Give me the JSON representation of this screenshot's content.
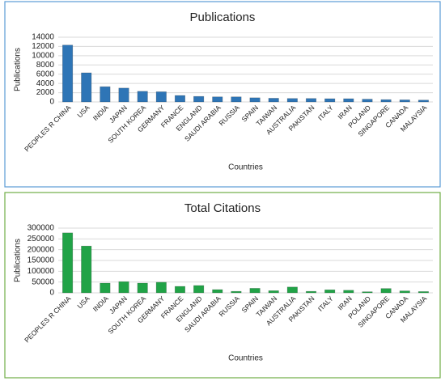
{
  "chart_data": [
    {
      "type": "bar",
      "title": "Publications",
      "x_label": "Countries",
      "y_label": "Publications",
      "categories": [
        "PEOPLES R CHINA",
        "USA",
        "INDIA",
        "JAPAN",
        "SOUTH KOREA",
        "GERMANY",
        "FRANCE",
        "ENGLAND",
        "SAUDI ARABIA",
        "RUSSIA",
        "SPAIN",
        "TAIWAN",
        "AUSTRALIA",
        "PAKISTAN",
        "ITALY",
        "IRAN",
        "POLAND",
        "SINGAPORE",
        "CANADA",
        "MALAYSIA"
      ],
      "values": [
        12300,
        6300,
        3300,
        3000,
        2300,
        2200,
        1400,
        1200,
        1100,
        1100,
        900,
        800,
        750,
        750,
        700,
        700,
        600,
        500,
        450,
        400
      ],
      "color": "#2e75b6",
      "ylim": [
        0,
        14000
      ],
      "yticks": [
        0,
        2000,
        4000,
        6000,
        8000,
        10000,
        12000,
        14000
      ],
      "grid": true
    },
    {
      "type": "bar",
      "title": "Total Citations",
      "x_label": "Countries",
      "y_label": "Publications",
      "categories": [
        "PEOPLES R CHINA",
        "USA",
        "INDIA",
        "JAPAN",
        "SOUTH KOREA",
        "GERMANY",
        "FRANCE",
        "ENGLAND",
        "SAUDI ARABIA",
        "RUSSIA",
        "SPAIN",
        "TAIWAN",
        "AUSTRALIA",
        "PAKISTAN",
        "ITALY",
        "IRAN",
        "POLAND",
        "SINGAPORE",
        "CANADA",
        "MALAYSIA"
      ],
      "values": [
        278000,
        217000,
        45000,
        52000,
        45000,
        49000,
        30000,
        34000,
        15000,
        7000,
        21000,
        10000,
        27000,
        7000,
        14000,
        12000,
        5000,
        20000,
        9000,
        6000
      ],
      "color": "#21a347",
      "ylim": [
        0,
        300000
      ],
      "yticks": [
        0,
        50000,
        100000,
        150000,
        200000,
        250000,
        300000
      ],
      "grid": true
    }
  ]
}
